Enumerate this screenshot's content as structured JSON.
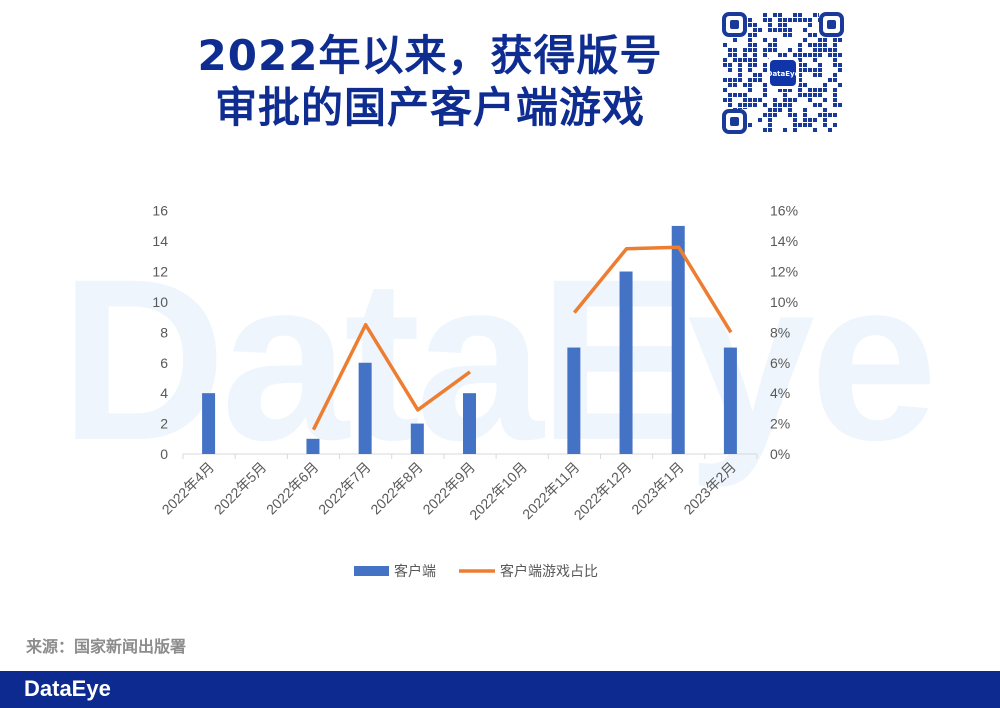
{
  "title": [
    "2022年以来，获得版号",
    "审批的国产客户端游戏"
  ],
  "qr_logo": "DataEye",
  "watermark": "DataEye",
  "source": "来源：国家新闻出版署",
  "footer_logo": "DataEye",
  "colors": {
    "bar": "#4472c4",
    "line": "#ed7d31",
    "title": "#0f2d91",
    "footer": "#0c2a8f"
  },
  "chart_data": {
    "type": "bar+line",
    "categories": [
      "2022年4月",
      "2022年5月",
      "2022年6月",
      "2022年7月",
      "2022年8月",
      "2022年9月",
      "2022年10月",
      "2022年11月",
      "2022年12月",
      "2023年1月",
      "2023年2月"
    ],
    "series": [
      {
        "name": "客户端",
        "type": "bar",
        "axis": "left",
        "values": [
          4,
          0,
          1,
          6,
          2,
          4,
          0,
          7,
          12,
          15,
          7
        ]
      },
      {
        "name": "客户端游戏占比",
        "type": "line",
        "axis": "right",
        "values": [
          null,
          null,
          1.6,
          8.5,
          2.9,
          5.4,
          null,
          9.3,
          13.5,
          13.6,
          8.0
        ]
      }
    ],
    "ylim": [
      0,
      16
    ],
    "yticks": [
      "0",
      "2",
      "4",
      "6",
      "8",
      "10",
      "12",
      "14",
      "16"
    ],
    "y2lim": [
      0,
      16
    ],
    "y2ticks": [
      "0%",
      "2%",
      "4%",
      "6%",
      "8%",
      "10%",
      "12%",
      "14%",
      "16%"
    ],
    "legend": "bottom",
    "grid": false
  }
}
